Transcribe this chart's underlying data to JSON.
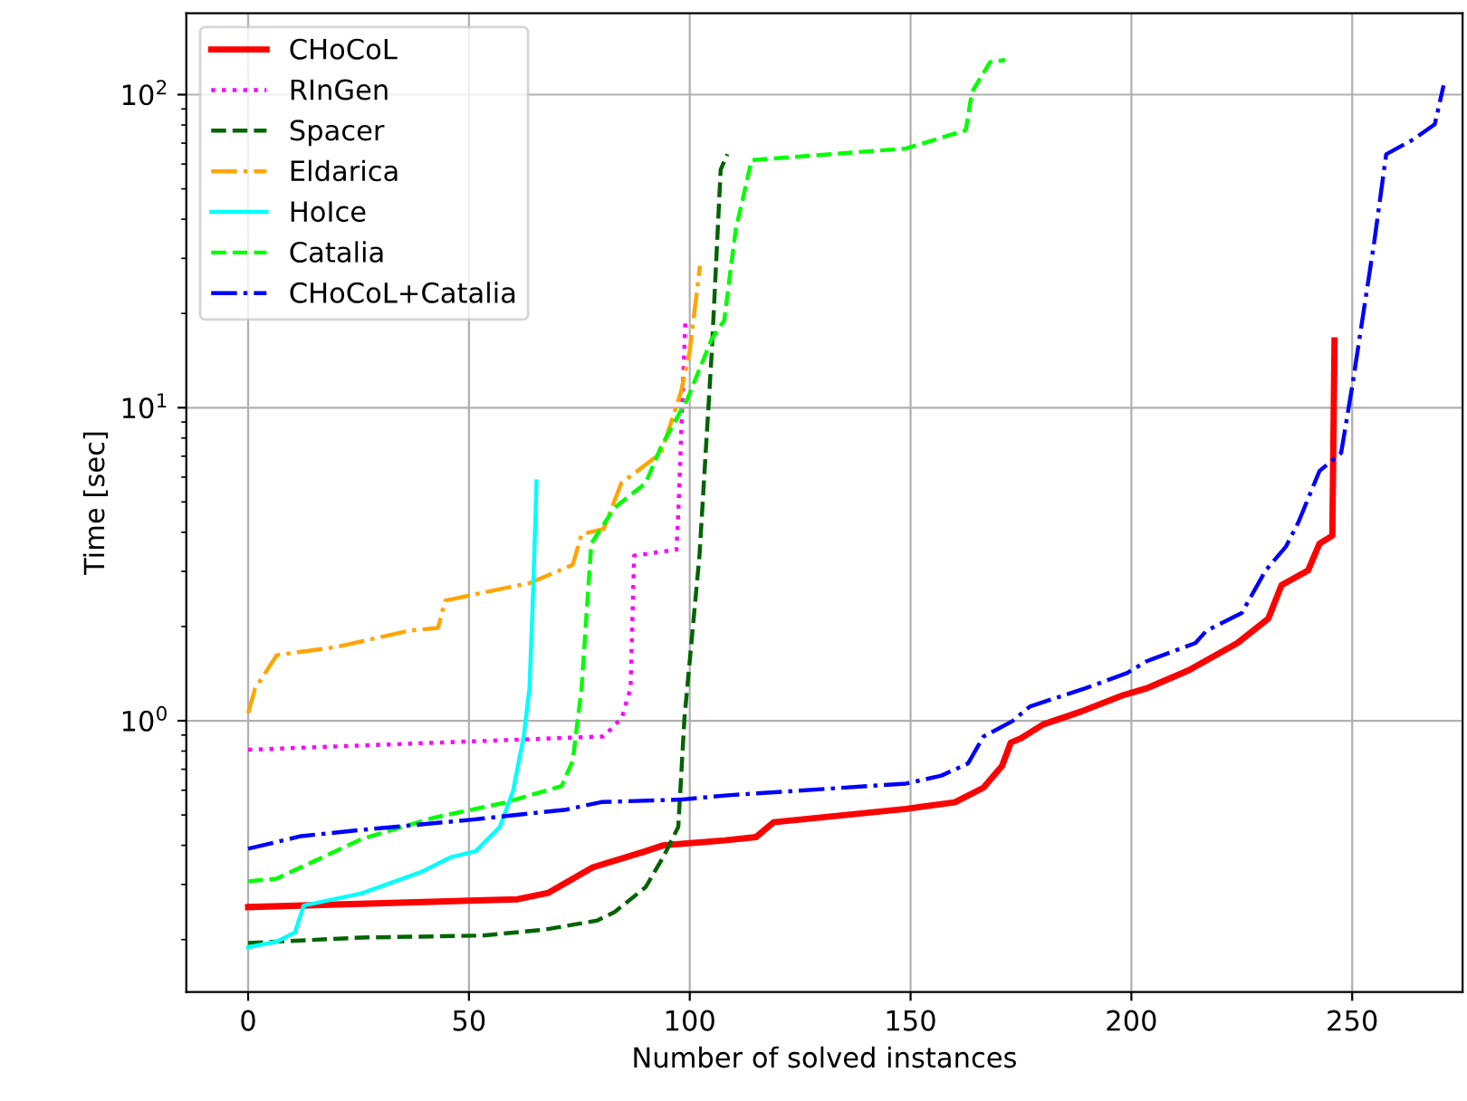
{
  "chart_data": {
    "type": "line",
    "xlabel": "Number of solved instances",
    "ylabel": "Time [sec]",
    "log": "y",
    "grid": true,
    "legend": "top left",
    "xlim": [
      -14,
      275
    ],
    "xticks": [
      0,
      50,
      100,
      150,
      200,
      250
    ],
    "ylim": [
      0.136,
      182
    ],
    "yticks": [
      {
        "value": 1,
        "label": "10$^{0}$"
      },
      {
        "value": 10,
        "label": "10$^{1}$"
      },
      {
        "value": 100,
        "label": "10$^{2}$"
      }
    ],
    "series": [
      {
        "name": "CHoCoL",
        "color": "#ff0000",
        "line_style": "solid",
        "x": [
          0,
          61,
          68,
          78,
          90,
          94,
          108,
          115,
          119,
          149,
          160,
          166.5,
          170.7,
          172.7,
          175,
          180,
          188.6,
          198,
          203.5,
          213,
          224,
          231,
          234,
          240,
          242.6,
          245.5,
          246
        ],
        "values": [
          0.254,
          0.269,
          0.282,
          0.34,
          0.383,
          0.4,
          0.415,
          0.425,
          0.474,
          0.523,
          0.549,
          0.611,
          0.717,
          0.852,
          0.879,
          0.973,
          1.07,
          1.205,
          1.27,
          1.45,
          1.77,
          2.12,
          2.71,
          3.02,
          3.68,
          3.9,
          16.4
        ]
      },
      {
        "name": "RInGen",
        "color": "#ff00ff",
        "line_style": "dotted",
        "x": [
          0,
          80.5,
          84.6,
          86.6,
          87.4,
          97,
          97.5,
          99
        ],
        "values": [
          0.808,
          0.891,
          1.02,
          1.27,
          3.37,
          3.52,
          5,
          19
        ]
      },
      {
        "name": "Spacer",
        "color": "#006400",
        "line_style": "dashed",
        "x": [
          0,
          25.7,
          53,
          67,
          79,
          83,
          90,
          94,
          97.4,
          98.8,
          102.2,
          105,
          107,
          108.5
        ],
        "values": [
          0.195,
          0.203,
          0.206,
          0.215,
          0.23,
          0.245,
          0.294,
          0.367,
          0.458,
          1.02,
          3.37,
          15.2,
          57.6,
          64.5
        ]
      },
      {
        "name": "Eldarica",
        "color": "#ffa500",
        "line_style": "dashdot",
        "x": [
          0,
          1.6,
          6.5,
          20,
          36.5,
          43,
          44.6,
          64,
          73.5,
          75.5,
          80.5,
          84.5,
          93.5,
          98,
          100,
          102.3
        ],
        "values": [
          1.06,
          1.27,
          1.62,
          1.72,
          1.94,
          1.98,
          2.42,
          2.76,
          3.15,
          3.94,
          4.1,
          5.74,
          7.17,
          11.2,
          15.2,
          28.4
        ]
      },
      {
        "name": "HoIce",
        "color": "#00ffff",
        "line_style": "solid",
        "x": [
          0,
          6.5,
          10.6,
          12.6,
          25.7,
          39,
          46,
          51.5,
          57,
          60,
          62.4,
          63.7,
          64.5,
          65.3
        ],
        "values": [
          0.189,
          0.197,
          0.211,
          0.257,
          0.281,
          0.328,
          0.367,
          0.383,
          0.458,
          0.598,
          0.89,
          1.27,
          2.5,
          5.82
        ]
      },
      {
        "name": "Catalia",
        "color": "#00ff00",
        "line_style": "dashed",
        "x": [
          0,
          6.4,
          25.7,
          42,
          58,
          71,
          73.5,
          75.5,
          77.7,
          83,
          90,
          93.5,
          99.5,
          105,
          107.8,
          110.4,
          114,
          149,
          162.5,
          163.9,
          168,
          171.4
        ],
        "values": [
          0.307,
          0.313,
          0.419,
          0.49,
          0.547,
          0.619,
          0.746,
          1.27,
          3.68,
          4.8,
          5.74,
          7.5,
          10.7,
          16.6,
          19,
          37,
          61.8,
          67.3,
          77,
          102,
          127,
          129
        ]
      },
      {
        "name": "CHoCoL+Catalia",
        "color": "#0000ff",
        "line_style": "dashdot",
        "x": [
          0,
          12,
          25.7,
          50,
          72,
          80,
          98,
          108,
          149,
          157,
          163,
          166.5,
          173,
          177,
          189.6,
          199,
          203.5,
          214.5,
          217,
          225,
          230.4,
          235,
          237.8,
          242.6,
          247.5,
          250,
          255,
          257.7,
          263.9,
          268.7,
          270.7
        ],
        "values": [
          0.39,
          0.428,
          0.448,
          0.482,
          0.52,
          0.55,
          0.56,
          0.577,
          0.63,
          0.668,
          0.73,
          0.89,
          0.996,
          1.11,
          1.27,
          1.42,
          1.55,
          1.77,
          1.94,
          2.21,
          3.02,
          3.6,
          4.3,
          6.28,
          7.17,
          11.7,
          33.9,
          64.5,
          72,
          80.4,
          107
        ]
      }
    ]
  }
}
